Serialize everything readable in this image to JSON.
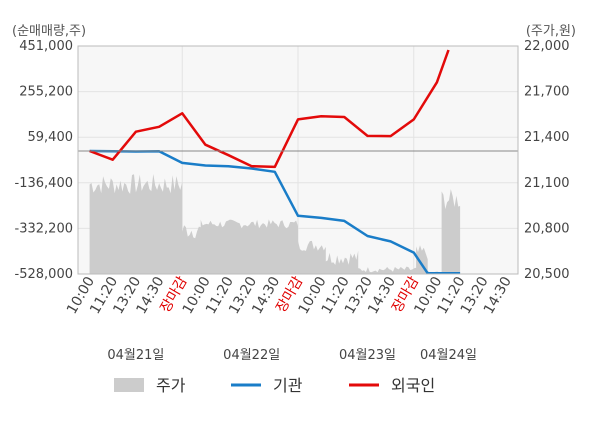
{
  "chart_data": {
    "type": "line",
    "left_axis_unit": "(순매매량,주)",
    "right_axis_unit": "(주가,원)",
    "left_ticks": [
      "451,000",
      "255,200",
      "59,400",
      "-136,400",
      "-332,200",
      "-528,000"
    ],
    "left_range": [
      -528000,
      451000
    ],
    "right_ticks": [
      "22,000",
      "21,700",
      "21,400",
      "21,100",
      "20,800",
      "20,500"
    ],
    "right_range": [
      20500,
      22000
    ],
    "zero_line": 0,
    "x_labels": [
      {
        "text": "10:00",
        "red": false
      },
      {
        "text": "11:20",
        "red": false
      },
      {
        "text": "13:20",
        "red": false
      },
      {
        "text": "14:30",
        "red": false
      },
      {
        "text": "장마감",
        "red": true
      },
      {
        "text": "10:00",
        "red": false
      },
      {
        "text": "11:20",
        "red": false
      },
      {
        "text": "13:20",
        "red": false
      },
      {
        "text": "14:30",
        "red": false
      },
      {
        "text": "장마감",
        "red": true
      },
      {
        "text": "10:00",
        "red": false
      },
      {
        "text": "11:20",
        "red": false
      },
      {
        "text": "13:20",
        "red": false
      },
      {
        "text": "14:30",
        "red": false
      },
      {
        "text": "장마감",
        "red": true
      },
      {
        "text": "10:00",
        "red": false
      },
      {
        "text": "11:20",
        "red": false
      },
      {
        "text": "13:20",
        "red": false
      },
      {
        "text": "14:30",
        "red": false
      }
    ],
    "dates": [
      {
        "text": "04월21일",
        "at": 2
      },
      {
        "text": "04월22일",
        "at": 7
      },
      {
        "text": "04월23일",
        "at": 12
      },
      {
        "text": "04월24일",
        "at": 15.5
      }
    ],
    "series": [
      {
        "name": "기관",
        "color": "#1a7dc8",
        "x": [
          0,
          1,
          2,
          3,
          4,
          5,
          6,
          7,
          8,
          9,
          10,
          11,
          12,
          13,
          14,
          14.6,
          15,
          15.5,
          16
        ],
        "values": [
          0,
          -1000,
          -2000,
          -1000,
          -51000,
          -62000,
          -65000,
          -75000,
          -89000,
          -278000,
          -287000,
          -300000,
          -365000,
          -388000,
          -436000,
          -525000,
          -525000,
          -525000,
          -525000
        ]
      },
      {
        "name": "외국인",
        "color": "#e30a0a",
        "x": [
          0,
          1,
          2,
          3,
          4,
          5,
          6,
          7,
          8,
          9,
          10,
          11,
          12,
          13,
          14,
          15,
          15.5
        ],
        "values": [
          0,
          -37000,
          83000,
          104000,
          162000,
          27000,
          -18000,
          -65000,
          -68000,
          136000,
          149000,
          146000,
          65000,
          64000,
          136000,
          295000,
          434000
        ]
      }
    ],
    "price_series": {
      "name": "주가",
      "color": "#cccccc",
      "x_end": 16,
      "segments": [
        {
          "x0": 0,
          "x1": 4,
          "base": 21090,
          "amp": 70,
          "seed": 1
        },
        {
          "x0": 4,
          "x1": 4.8,
          "base": 20790,
          "amp": 60,
          "seed": 2
        },
        {
          "x0": 4.8,
          "x1": 9,
          "base": 20830,
          "amp": 30,
          "seed": 3
        },
        {
          "x0": 9,
          "x1": 10.2,
          "base": 20690,
          "amp": 40,
          "seed": 4
        },
        {
          "x0": 10.2,
          "x1": 11.6,
          "base": 20610,
          "amp": 50,
          "seed": 5
        },
        {
          "x0": 11.6,
          "x1": 14.1,
          "base": 20530,
          "amp": 20,
          "seed": 6
        },
        {
          "x0": 14.1,
          "x1": 14.6,
          "base": 20640,
          "amp": 50,
          "seed": 7
        },
        {
          "x0": 14.6,
          "x1": 15.2,
          "base": 20510,
          "amp": 10,
          "seed": 8
        },
        {
          "x0": 15.2,
          "x1": 16,
          "base": 20990,
          "amp": 70,
          "seed": 9
        }
      ]
    },
    "legend": [
      {
        "label": "주가",
        "kind": "box",
        "color": "#cccccc"
      },
      {
        "label": "기관",
        "kind": "line",
        "color": "#1a7dc8"
      },
      {
        "label": "외국인",
        "kind": "line",
        "color": "#e30a0a"
      }
    ],
    "grid": true,
    "legend_position": "bottom"
  }
}
